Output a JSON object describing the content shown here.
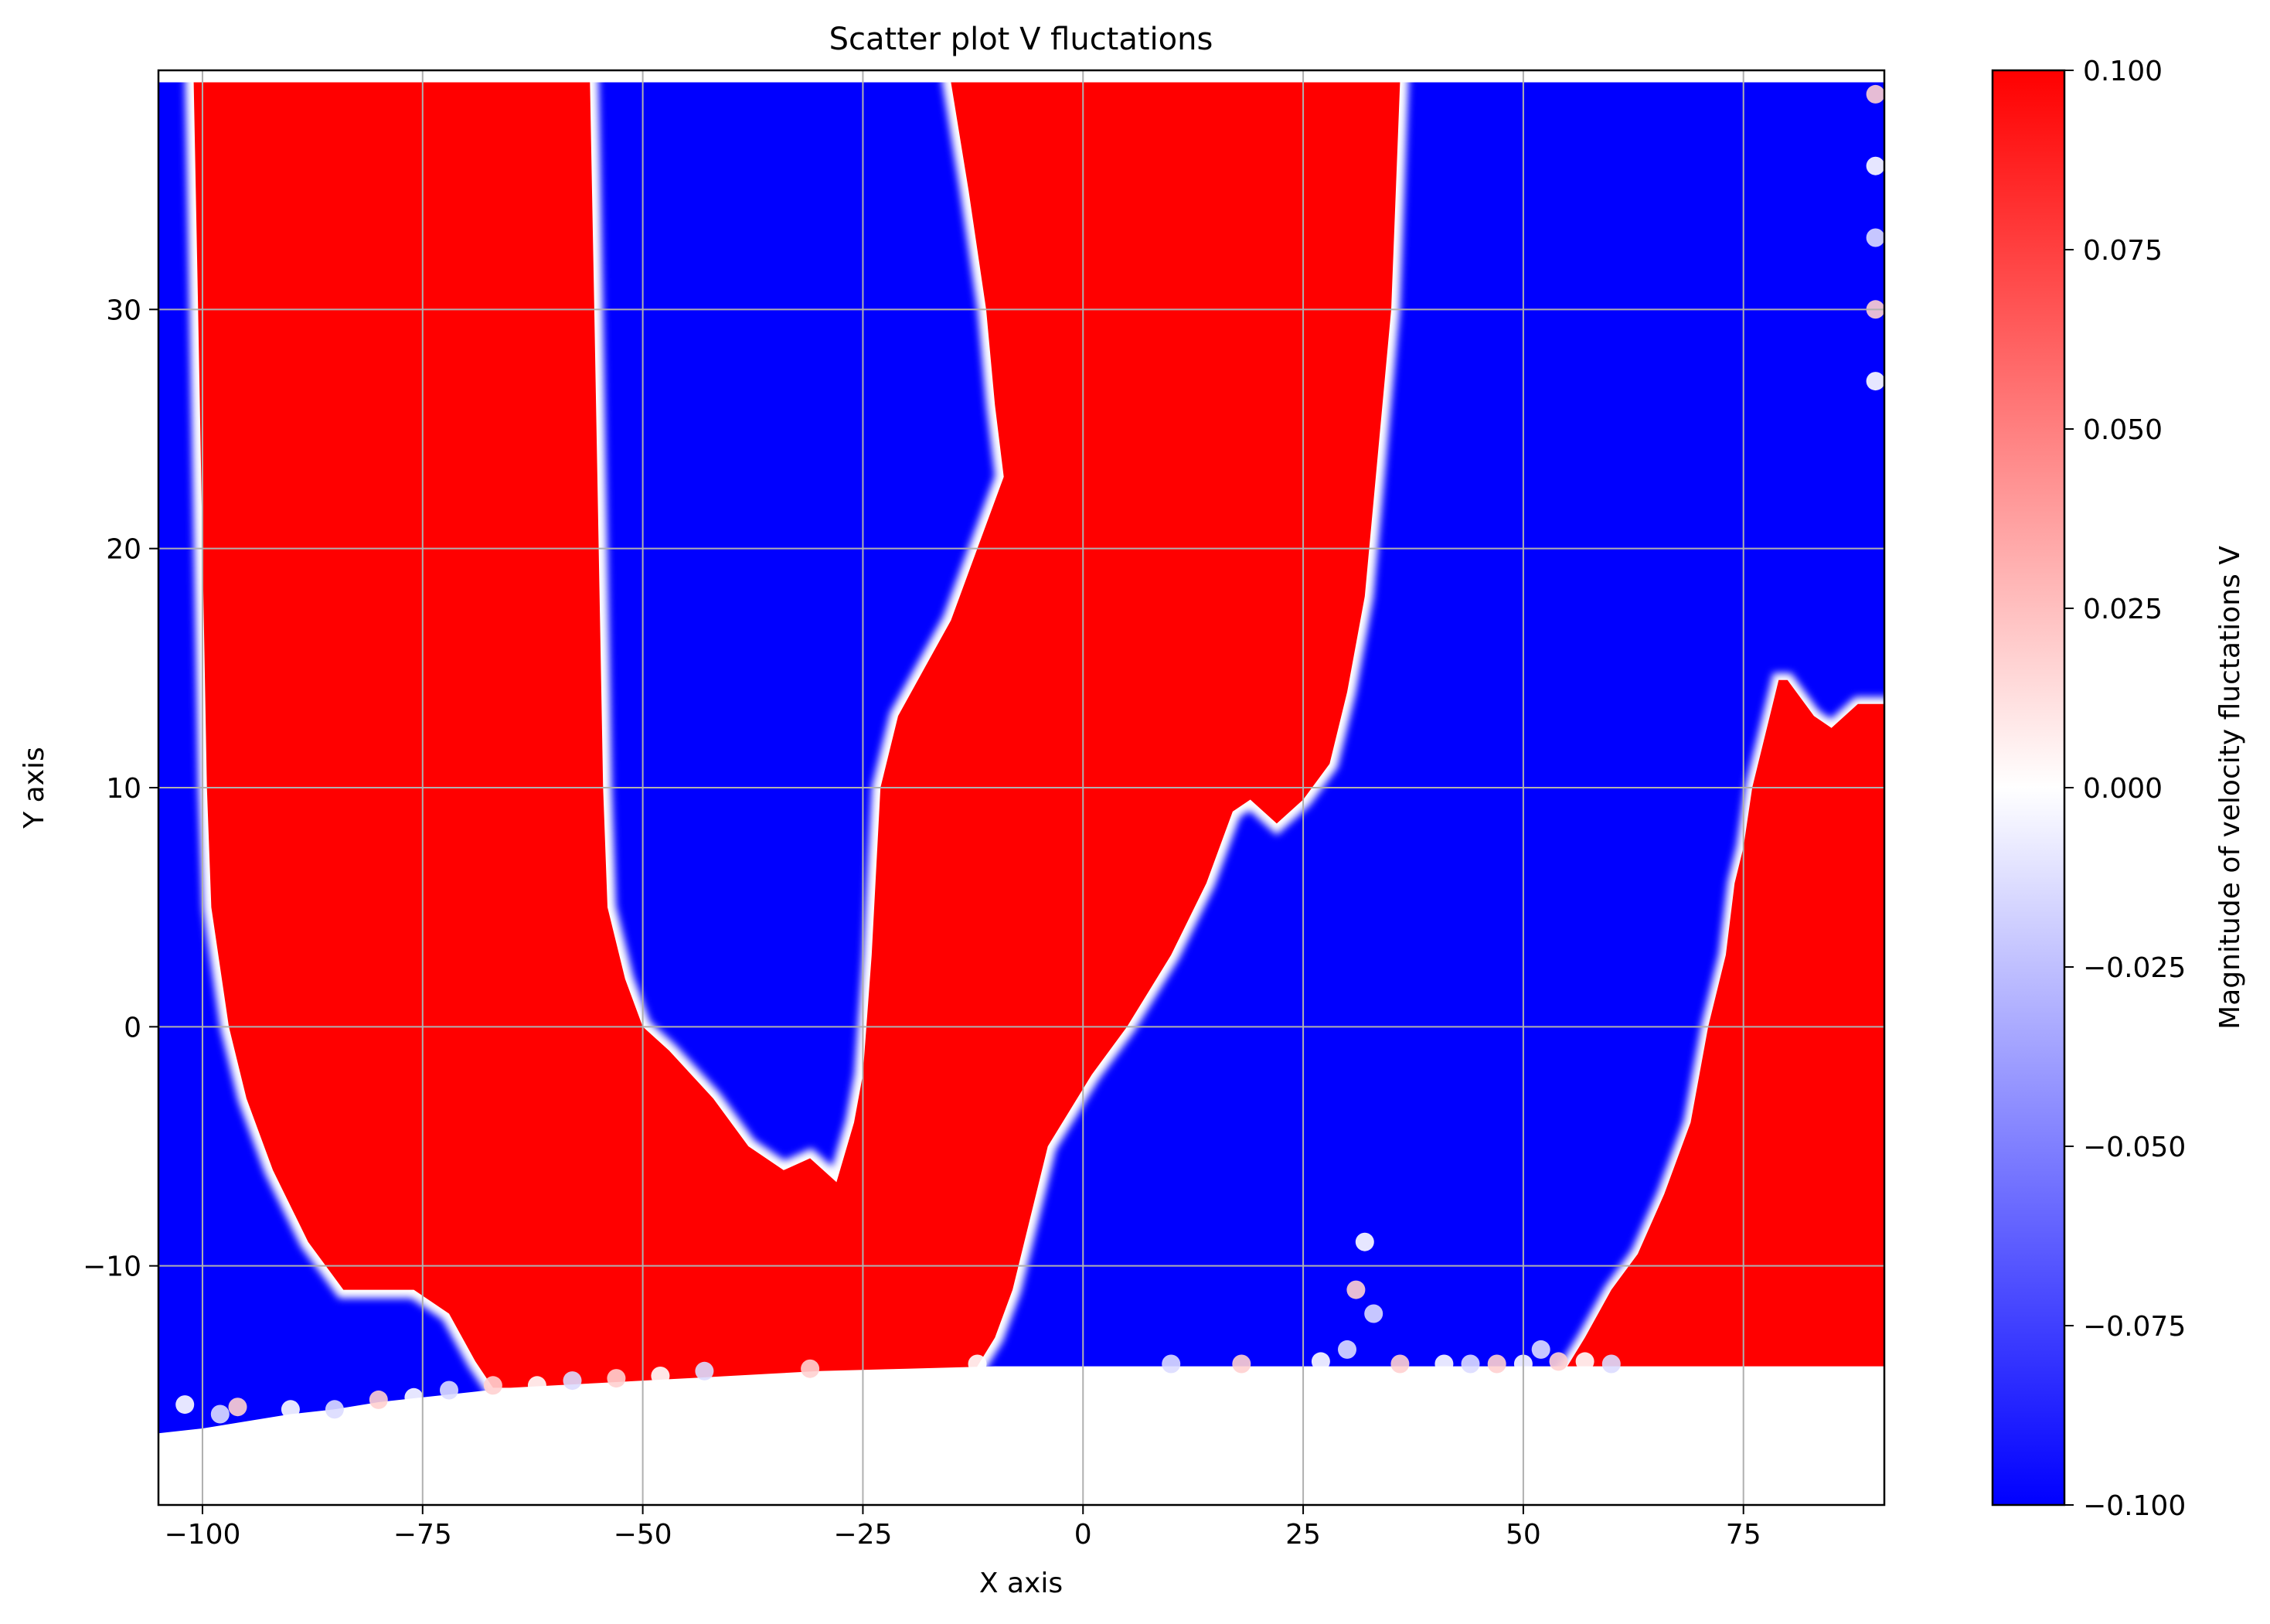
{
  "chart_data": {
    "type": "scatter",
    "title": "Scatter plot V fluctations",
    "xlabel": "X axis",
    "ylabel": "Y axis",
    "xlim": [
      -105,
      91
    ],
    "ylim": [
      -20,
      40
    ],
    "xticks": [
      -100,
      -75,
      -50,
      -25,
      0,
      25,
      50,
      75
    ],
    "yticks": [
      -10,
      0,
      10,
      20,
      30
    ],
    "grid": true,
    "colormap": "bwr",
    "colormap_colors": [
      "#0000ff",
      "#ffffff",
      "#ff0000"
    ],
    "clim": [
      -0.1,
      0.1
    ],
    "colorbar": {
      "label": "Magnitude of velocity fluctations V",
      "ticks": [
        -0.1,
        -0.075,
        -0.05,
        -0.025,
        0.0,
        0.025,
        0.05,
        0.075,
        0.1
      ],
      "tick_labels": [
        "−0.100",
        "−0.075",
        "−0.050",
        "−0.025",
        "0.000",
        "0.025",
        "0.050",
        "0.075",
        "0.100"
      ]
    },
    "x_tick_labels": [
      "−100",
      "−75",
      "−50",
      "−25",
      "0",
      "25",
      "50",
      "75"
    ],
    "y_tick_labels": [
      "−10",
      "0",
      "10",
      "20",
      "30"
    ],
    "y_top": 39.5,
    "bottom_edge": [
      [
        -105,
        -17.0
      ],
      [
        -100,
        -16.8
      ],
      [
        -95,
        -16.5
      ],
      [
        -90,
        -16.2
      ],
      [
        -85,
        -16.0
      ],
      [
        -80,
        -15.7
      ],
      [
        -75,
        -15.5
      ],
      [
        -70,
        -15.3
      ],
      [
        -65,
        -15.1
      ],
      [
        -60,
        -15.0
      ],
      [
        -55,
        -14.9
      ],
      [
        -50,
        -14.8
      ],
      [
        -45,
        -14.7
      ],
      [
        -40,
        -14.6
      ],
      [
        -35,
        -14.5
      ],
      [
        -30,
        -14.4
      ],
      [
        -20,
        -14.3
      ],
      [
        -10,
        -14.2
      ],
      [
        0,
        -14.2
      ],
      [
        91,
        -14.2
      ]
    ],
    "regions": [
      {
        "name": "red-band-1",
        "v": 0.1,
        "left": [
          [
            -101,
            39.5
          ],
          [
            -100.5,
            30
          ],
          [
            -100,
            20
          ],
          [
            -99.5,
            10
          ],
          [
            -99,
            5
          ],
          [
            -97,
            0
          ],
          [
            -95,
            -3
          ],
          [
            -92,
            -6
          ],
          [
            -88,
            -9
          ],
          [
            -84,
            -11
          ],
          [
            -76,
            -11
          ],
          [
            -72,
            -12
          ],
          [
            -69,
            -14
          ],
          [
            -67,
            -15.1
          ]
        ],
        "right": [
          [
            -56,
            39.5
          ],
          [
            -55.5,
            30
          ],
          [
            -55,
            20
          ],
          [
            -54.5,
            10
          ],
          [
            -54,
            5
          ],
          [
            -52,
            2
          ],
          [
            -50,
            0
          ],
          [
            -47,
            -1
          ],
          [
            -42,
            -3
          ],
          [
            -38,
            -5
          ],
          [
            -34,
            -6
          ],
          [
            -31,
            -5.5
          ],
          [
            -28,
            -6.5
          ],
          [
            -26,
            -4
          ],
          [
            -25,
            -2
          ],
          [
            -24,
            3
          ],
          [
            -23,
            10
          ],
          [
            -21,
            13
          ],
          [
            -18,
            15
          ],
          [
            -15,
            17
          ],
          [
            -11,
            21
          ],
          [
            -9,
            23
          ],
          [
            -10,
            26
          ],
          [
            -11,
            30
          ],
          [
            -13,
            35
          ],
          [
            -15,
            39.5
          ]
        ],
        "right_end": [
          [
            -15,
            39.5
          ],
          [
            -13,
            35
          ],
          [
            -11,
            30
          ],
          [
            -10,
            26
          ],
          [
            -9,
            23
          ],
          [
            -11,
            21
          ],
          [
            -15,
            17
          ],
          [
            -18,
            15
          ],
          [
            -21,
            13
          ],
          [
            -23,
            10
          ],
          [
            -24,
            3
          ],
          [
            -25,
            -2
          ],
          [
            -26,
            -4
          ],
          [
            -28,
            -6.5
          ],
          [
            -31,
            -5.5
          ],
          [
            -34,
            -6
          ],
          [
            -38,
            -5
          ],
          [
            -42,
            -3
          ],
          [
            -47,
            -1
          ],
          [
            -50,
            0
          ],
          [
            -52,
            2
          ],
          [
            -54,
            5
          ],
          [
            -54.5,
            10
          ],
          [
            -55,
            20
          ],
          [
            -55.5,
            30
          ],
          [
            -56,
            39.5
          ]
        ]
      },
      {
        "name": "blue-wedge-1",
        "v": -0.1
      },
      {
        "name": "red-band-2",
        "v": 0.1,
        "boundary_right": [
          [
            36,
            39.5
          ],
          [
            35,
            30
          ],
          [
            33,
            22
          ],
          [
            32,
            18
          ],
          [
            30,
            14
          ],
          [
            28,
            11
          ],
          [
            25,
            9.5
          ],
          [
            22,
            8.5
          ],
          [
            19,
            9.5
          ],
          [
            17,
            9
          ],
          [
            14,
            6
          ],
          [
            10,
            3
          ],
          [
            5,
            0
          ],
          [
            1,
            -2
          ],
          [
            -4,
            -5
          ],
          [
            -6,
            -8
          ],
          [
            -8,
            -11
          ],
          [
            -10,
            -13
          ],
          [
            -12,
            -14.2
          ]
        ]
      },
      {
        "name": "red-band-3",
        "v": 0.1,
        "boundary_left": [
          [
            91,
            13.5
          ],
          [
            88,
            13.5
          ],
          [
            85,
            12.5
          ],
          [
            83,
            13
          ],
          [
            80,
            14.5
          ],
          [
            79,
            14.5
          ],
          [
            78,
            13
          ],
          [
            76,
            10
          ],
          [
            75,
            7.5
          ],
          [
            74,
            6
          ],
          [
            73,
            3
          ],
          [
            71,
            0
          ],
          [
            69,
            -4
          ],
          [
            66,
            -7
          ],
          [
            63,
            -9.5
          ],
          [
            60,
            -11
          ],
          [
            57,
            -13
          ],
          [
            55,
            -14.2
          ]
        ]
      }
    ],
    "white_specks": [
      [
        -102,
        -15.8
      ],
      [
        -98,
        -16.2
      ],
      [
        -96,
        -15.9
      ],
      [
        -90,
        -16.0
      ],
      [
        -85,
        -16.0
      ],
      [
        -80,
        -15.6
      ],
      [
        -76,
        -15.5
      ],
      [
        -72,
        -15.2
      ],
      [
        -67,
        -15.0
      ],
      [
        -62,
        -15.0
      ],
      [
        -58,
        -14.8
      ],
      [
        -53,
        -14.7
      ],
      [
        -48,
        -14.6
      ],
      [
        -43,
        -14.4
      ],
      [
        -31,
        -14.3
      ],
      [
        -12,
        -14.1
      ],
      [
        10,
        -14.1
      ],
      [
        18,
        -14.1
      ],
      [
        27,
        -14.0
      ],
      [
        30,
        -13.5
      ],
      [
        31,
        -11
      ],
      [
        32,
        -9
      ],
      [
        33,
        -12
      ],
      [
        36,
        -14.1
      ],
      [
        41,
        -14.1
      ],
      [
        44,
        -14.1
      ],
      [
        47,
        -14.1
      ],
      [
        50,
        -14.1
      ],
      [
        52,
        -13.5
      ],
      [
        54,
        -14.0
      ],
      [
        57,
        -14.0
      ],
      [
        60,
        -14.1
      ],
      [
        90,
        39
      ],
      [
        90,
        36
      ],
      [
        90,
        33
      ],
      [
        90,
        30
      ],
      [
        90,
        27
      ]
    ]
  }
}
